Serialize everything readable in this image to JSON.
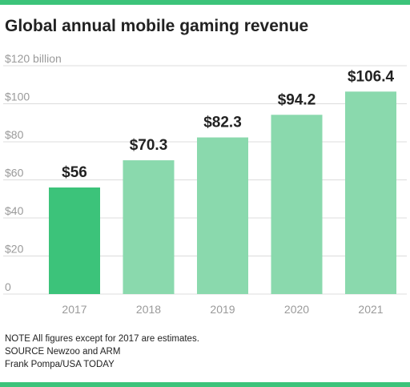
{
  "title": "Global annual mobile gaming revenue",
  "chart_data": {
    "type": "bar",
    "title": "Global annual mobile gaming revenue",
    "categories": [
      "2017",
      "2018",
      "2019",
      "2020",
      "2021"
    ],
    "values": [
      56,
      70.3,
      82.3,
      94.2,
      106.4
    ],
    "data_labels": [
      "$56",
      "$70.3",
      "$82.3",
      "$94.2",
      "$106.4"
    ],
    "y_ticks": [
      0,
      20,
      40,
      60,
      80,
      100,
      120
    ],
    "y_tick_labels": [
      "0",
      "$20",
      "$40",
      "$60",
      "$80",
      "$100",
      "$120 billion"
    ],
    "ylim": [
      0,
      120
    ],
    "xlabel": "",
    "ylabel": "",
    "grid": true,
    "highlight_index": 0,
    "colors": {
      "highlight": "#3cc37a",
      "bar": "#8ad9ad",
      "grid": "#dcdcdc",
      "accent": "#3cc37a"
    }
  },
  "notes": {
    "note": "NOTE All figures except for 2017 are estimates.",
    "source": "SOURCE Newzoo and ARM",
    "credit": "Frank Pompa/USA TODAY"
  }
}
